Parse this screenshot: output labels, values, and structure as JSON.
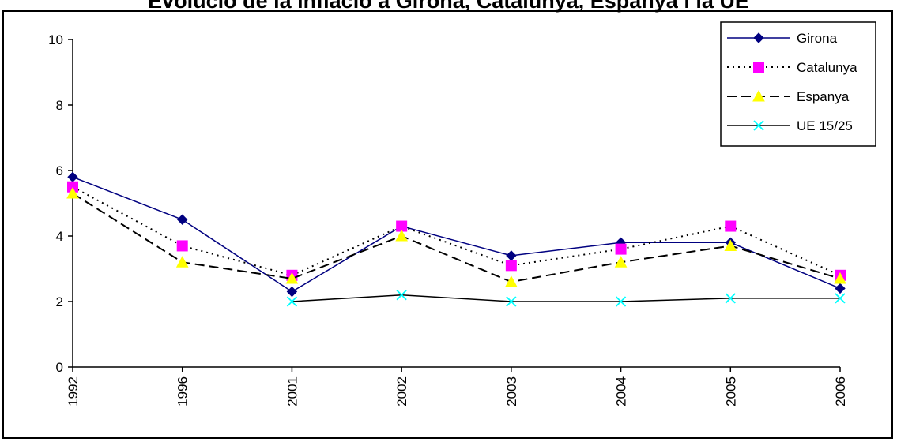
{
  "chart_data": {
    "type": "line",
    "title": "Evolució de la inflació a Girona, Catalunya, Espanya i la UE",
    "categories": [
      "1992",
      "1996",
      "2001",
      "2002",
      "2003",
      "2004",
      "2005",
      "2006"
    ],
    "ylim": [
      0,
      10
    ],
    "yticks": [
      "0",
      "2",
      "4",
      "6",
      "8",
      "10"
    ],
    "grid": false,
    "legend_position": "top-right",
    "series": [
      {
        "name": "Girona",
        "values": [
          5.8,
          4.5,
          2.3,
          4.3,
          3.4,
          3.8,
          3.8,
          2.4
        ],
        "color": "#000080",
        "line": "solid",
        "marker": "diamond",
        "marker_color": "#000080"
      },
      {
        "name": "Catalunya",
        "values": [
          5.5,
          3.7,
          2.8,
          4.3,
          3.1,
          3.6,
          4.3,
          2.8
        ],
        "color": "#000000",
        "line": "dotted",
        "marker": "square",
        "marker_color": "#ff00ff"
      },
      {
        "name": "Espanya",
        "values": [
          5.3,
          3.2,
          2.7,
          4.0,
          2.6,
          3.2,
          3.7,
          2.7
        ],
        "color": "#000000",
        "line": "dashed",
        "marker": "triangle",
        "marker_color": "#ffff00"
      },
      {
        "name": "UE 15/25",
        "values": [
          null,
          null,
          2.0,
          2.2,
          2.0,
          2.0,
          2.1,
          2.1
        ],
        "color": "#000000",
        "line": "solid",
        "marker": "x",
        "marker_color": "#00ffff"
      }
    ]
  }
}
